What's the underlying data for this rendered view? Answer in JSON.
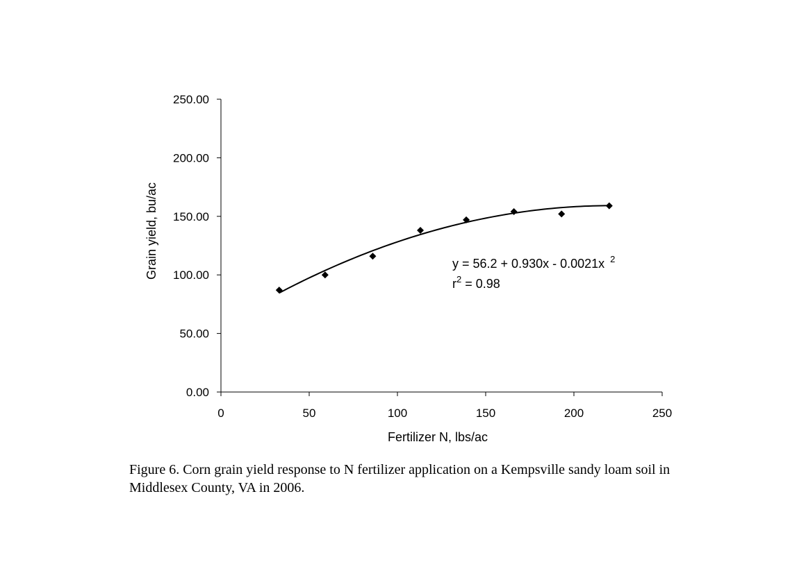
{
  "chart_data": {
    "type": "scatter",
    "xlabel": "Fertilizer N, lbs/ac",
    "ylabel": "Grain yield, bu/ac",
    "xlim": [
      0,
      250
    ],
    "ylim": [
      0,
      250
    ],
    "x_ticks": [
      "0",
      "50",
      "100",
      "150",
      "200",
      "250"
    ],
    "y_ticks": [
      "0.00",
      "50.00",
      "100.00",
      "150.00",
      "200.00",
      "250.00"
    ],
    "grid": false,
    "legend": "none",
    "marker": "diamond",
    "series": [
      {
        "x": [
          33,
          59,
          86,
          113,
          139,
          166,
          193,
          220
        ],
        "y": [
          87,
          100,
          116,
          138,
          147,
          154,
          152,
          159
        ]
      }
    ],
    "trendline": {
      "type": "polynomial",
      "intercept": 56.2,
      "linear": 0.93,
      "quadratic": -0.0021,
      "x_range": [
        33,
        220
      ]
    },
    "equation_text": "y = 56.2 + 0.930x - 0.0021x",
    "equation_exponent": "2",
    "r2_prefix": "r",
    "r2_exponent": "2",
    "r2_text": " = 0.98"
  },
  "caption": "Figure 6.  Corn grain yield response to N fertilizer application on a Kempsville sandy loam soil in Middlesex County, VA in 2006."
}
